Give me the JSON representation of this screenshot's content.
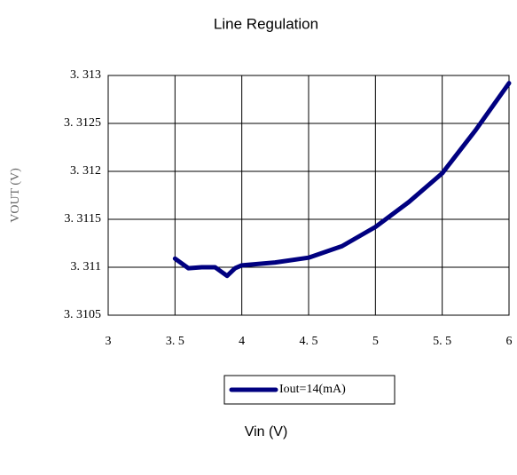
{
  "chart_data": {
    "type": "line",
    "title": "Line Regulation",
    "x_label": "Vin (V)",
    "y_label": "VOUT (V)",
    "x": [
      3.5,
      3.6,
      3.7,
      3.8,
      3.89,
      3.95,
      4.0,
      4.25,
      4.5,
      4.75,
      5.0,
      5.25,
      5.5,
      5.75,
      6.0
    ],
    "series": [
      {
        "name": "Iout=14(mA)",
        "color": "#000080",
        "values": [
          3.31109,
          3.31099,
          3.311,
          3.311,
          3.31091,
          3.31099,
          3.31102,
          3.31105,
          3.3111,
          3.31122,
          3.31142,
          3.31168,
          3.31198,
          3.31243,
          3.31292
        ]
      }
    ],
    "xlim": [
      3,
      6
    ],
    "xticks": [
      3,
      {
        "value": 3.5,
        "label": "3. 5"
      },
      4,
      {
        "value": 4.5,
        "label": "4. 5"
      },
      5,
      {
        "value": 5.5,
        "label": "5. 5"
      },
      6
    ],
    "ylim": [
      3.3105,
      3.313
    ],
    "yticks": [
      {
        "value": 3.3105,
        "label": "3. 3105"
      },
      {
        "value": 3.311,
        "label": "3. 311"
      },
      {
        "value": 3.3115,
        "label": "3. 3115"
      },
      {
        "value": 3.312,
        "label": "3. 312"
      },
      {
        "value": 3.3125,
        "label": "3. 3125"
      },
      {
        "value": 3.313,
        "label": "3. 313"
      }
    ],
    "grid": true,
    "legend": "bottom"
  }
}
